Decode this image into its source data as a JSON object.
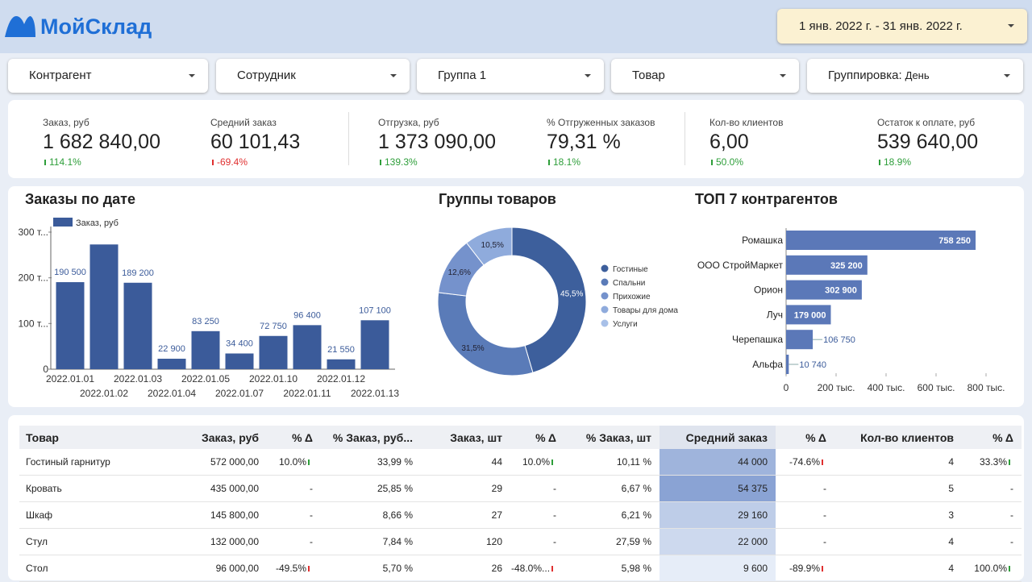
{
  "header": {
    "logo": "МойСклад",
    "date_range": "1 янв. 2022 г. - 31 янв. 2022 г."
  },
  "filters": [
    {
      "label": "Контрагент"
    },
    {
      "label": "Сотрудник"
    },
    {
      "label": "Группа 1"
    },
    {
      "label": "Товар"
    },
    {
      "label": "Группировка:",
      "value": "День"
    }
  ],
  "kpis": [
    {
      "label": "Заказ, руб",
      "value": "1 682 840,00",
      "change": "114.1%"
    },
    {
      "label": "Средний заказ",
      "value": "60 101,43",
      "change": "-69.4%"
    },
    {
      "label": "Отгрузка, руб",
      "value": "1 373 090,00",
      "change": "139.3%"
    },
    {
      "label": "% Отгруженных заказов",
      "value": "79,31 %",
      "change": "18.1%"
    },
    {
      "label": "Кол-во клиентов",
      "value": "6,00",
      "change": "50.0%"
    },
    {
      "label": "Остаток к оплате, руб",
      "value": "539 640,00",
      "change": "18.9%"
    }
  ],
  "chart_data": [
    {
      "type": "bar",
      "title": "Заказы по дате",
      "categories": [
        "2022.01.01",
        "2022.01.02",
        "2022.01.03",
        "2022.01.04",
        "2022.01.05",
        "2022.01.07",
        "2022.01.10",
        "2022.01.11",
        "2022.01.12",
        "2022.01.13"
      ],
      "series": [
        {
          "name": "Заказ, руб",
          "color": "#3b5b9a",
          "values": [
            190500,
            273000,
            189200,
            22900,
            83250,
            34400,
            72750,
            96400,
            21550,
            107100
          ],
          "value_labels": [
            "190 500",
            null,
            "189 200",
            "22 900",
            "83 250",
            "34 400",
            "72 750",
            "96 400",
            "21 550",
            "107 100"
          ]
        }
      ],
      "ylim": [
        0,
        310000
      ],
      "yticks": [
        {
          "value": 0,
          "label": "0"
        },
        {
          "value": 100000,
          "label": "100 т..."
        },
        {
          "value": 200000,
          "label": "200 т..."
        },
        {
          "value": 300000,
          "label": "300 т..."
        }
      ]
    },
    {
      "type": "pie",
      "title": "Группы товаров",
      "donut": true,
      "categories": [
        "Гостиные",
        "Спальни",
        "Прихожие",
        "Товары для дома",
        "Услуги"
      ],
      "values": [
        45.5,
        31.5,
        12.6,
        10.5,
        0
      ],
      "value_labels": [
        "45,5%",
        "31,5%",
        "12,6%",
        "10,5%",
        null
      ],
      "colors": [
        "#3d5f9c",
        "#5a7bb8",
        "#7592cc",
        "#8fabdc",
        "#a8c0e8"
      ]
    },
    {
      "type": "hbar",
      "title": "ТОП 7 контрагентов",
      "color": "#5b78b8",
      "categories": [
        "Ромашка",
        "ООО СтройМаркет",
        "Орион",
        "Луч",
        "Черепашка",
        "Альфа"
      ],
      "values": [
        758250,
        325200,
        302900,
        179000,
        106750,
        10740
      ],
      "value_labels": [
        "758 250",
        "325 200",
        "302 900",
        "179 000",
        "106 750",
        "10 740"
      ],
      "xlim": [
        0,
        800000
      ],
      "xticks": [
        0,
        {
          "value": 200000,
          "label": "200 тыс."
        },
        {
          "value": 400000,
          "label": "400 тыс."
        },
        {
          "value": 600000,
          "label": "600 тыс."
        },
        {
          "value": 800000,
          "label": "800 тыс."
        }
      ]
    }
  ],
  "table": {
    "columns": [
      "Товар",
      "Заказ, руб",
      "% Δ",
      "% Заказ, руб...",
      "Заказ, шт",
      "% Δ",
      "% Заказ, шт",
      "Средний заказ",
      "% Δ",
      "Кол-во клиентов",
      "% Δ"
    ],
    "rows": [
      [
        "Гостиный гарнитур",
        "572 000,00",
        "10.0%",
        "33,99 %",
        "44",
        "10.0%",
        "10,11 %",
        "44 000",
        "-74.6%",
        "4",
        "33.3%"
      ],
      [
        "Кровать",
        "435 000,00",
        "-",
        "25,85 %",
        "29",
        "-",
        "6,67 %",
        "54 375",
        "-",
        "5",
        "-"
      ],
      [
        "Шкаф",
        "145 800,00",
        "-",
        "8,66 %",
        "27",
        "-",
        "6,21 %",
        "29 160",
        "-",
        "3",
        "-"
      ],
      [
        "Стул",
        "132 000,00",
        "-",
        "7,84 %",
        "120",
        "-",
        "27,59 %",
        "22 000",
        "-",
        "4",
        "-"
      ],
      [
        "Стол",
        "96 000,00",
        "-49.5%",
        "5,70 %",
        "26",
        "-48.0%...",
        "5,98 %",
        "9 600",
        "-89.9%",
        "4",
        "100.0%"
      ]
    ]
  }
}
